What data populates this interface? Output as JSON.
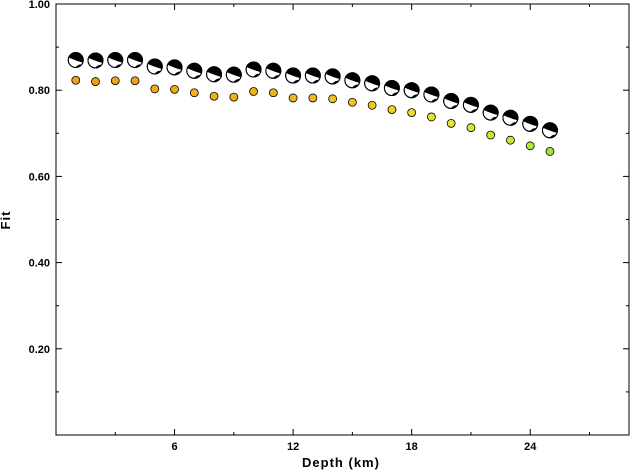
{
  "chart_data": {
    "type": "scatter",
    "title": "",
    "xlabel": "Depth (km)",
    "ylabel": "Fit",
    "xlim": [
      0,
      29
    ],
    "ylim": [
      0,
      1.0
    ],
    "x_ticks": [
      6,
      12,
      18,
      24
    ],
    "x_tick_labels": [
      "6",
      "12",
      "18",
      "24"
    ],
    "y_ticks": [
      0.2,
      0.4,
      0.6,
      0.8,
      1.0
    ],
    "y_tick_labels": [
      "0.20",
      "0.40",
      "0.60",
      "0.80",
      "1.00"
    ],
    "grid": false,
    "series": [
      {
        "marker": "focal-mechanism",
        "colors": {
          "fill": "#000000",
          "background": "#ffffff"
        },
        "x": [
          1,
          2,
          3,
          4,
          5,
          6,
          7,
          8,
          9,
          10,
          11,
          12,
          13,
          14,
          15,
          16,
          17,
          18,
          19,
          20,
          21,
          22,
          23,
          24,
          25
        ],
        "y": [
          0.87,
          0.869,
          0.87,
          0.87,
          0.855,
          0.853,
          0.845,
          0.837,
          0.836,
          0.848,
          0.845,
          0.834,
          0.834,
          0.832,
          0.823,
          0.816,
          0.805,
          0.8,
          0.79,
          0.775,
          0.766,
          0.748,
          0.736,
          0.722,
          0.707
        ]
      },
      {
        "marker": "circle",
        "x": [
          1,
          2,
          3,
          4,
          5,
          6,
          7,
          8,
          9,
          10,
          11,
          12,
          13,
          14,
          15,
          16,
          17,
          18,
          19,
          20,
          21,
          22,
          23,
          24,
          25
        ],
        "y": [
          0.823,
          0.82,
          0.822,
          0.822,
          0.803,
          0.802,
          0.794,
          0.786,
          0.784,
          0.797,
          0.794,
          0.782,
          0.782,
          0.78,
          0.772,
          0.765,
          0.755,
          0.748,
          0.738,
          0.723,
          0.713,
          0.696,
          0.684,
          0.671,
          0.658
        ],
        "colors": [
          "#f0a018",
          "#f0a018",
          "#f0a018",
          "#f0a018",
          "#f0a818",
          "#f0a818",
          "#f0b018",
          "#f0b018",
          "#f0b018",
          "#f0b018",
          "#f0b018",
          "#f0b820",
          "#f0b820",
          "#f0c020",
          "#f0c020",
          "#f0c820",
          "#f0d020",
          "#f0d828",
          "#e8e028",
          "#e0e830",
          "#d8e830",
          "#c8e830",
          "#c0e838",
          "#b0e838",
          "#a0e040"
        ]
      }
    ]
  }
}
